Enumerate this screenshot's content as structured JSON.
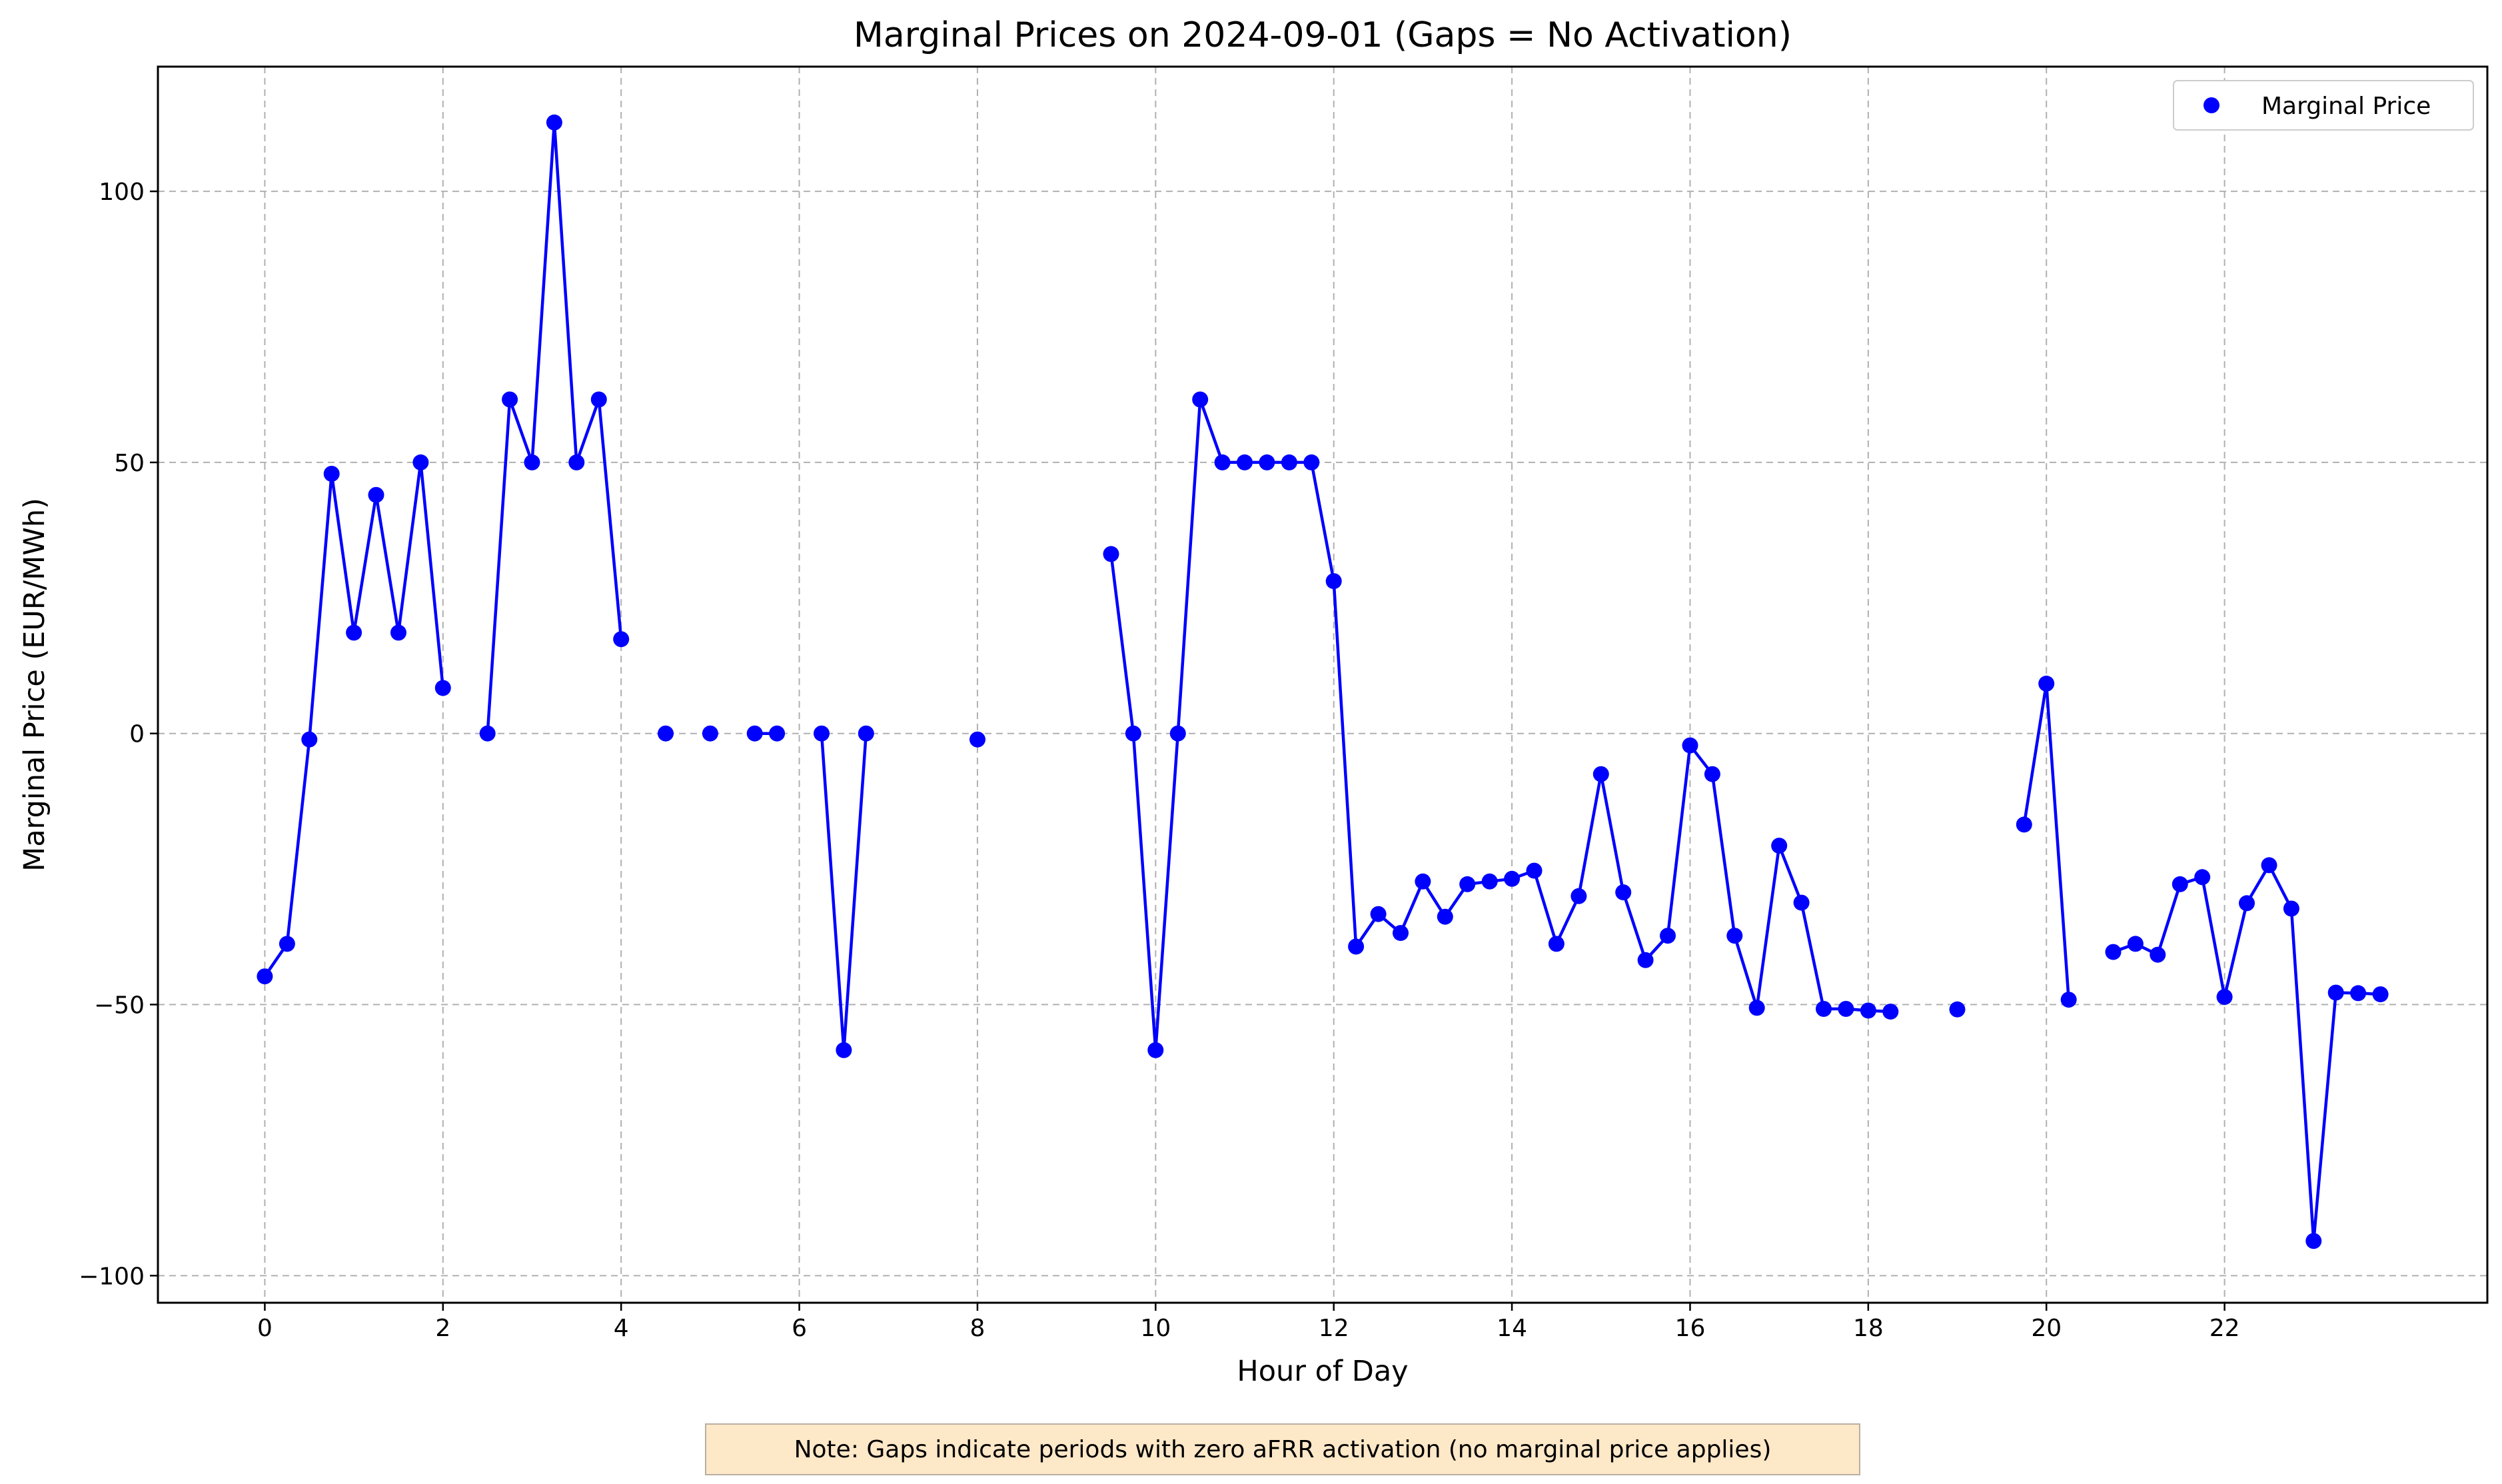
{
  "chart_data": {
    "type": "line",
    "title": "Marginal Prices on 2024-09-01 (Gaps = No Activation)",
    "xlabel": "Hour of Day",
    "ylabel": "Marginal Price (EUR/MWh)",
    "xlim": [
      -1.2,
      24.95
    ],
    "ylim": [
      -105,
      123
    ],
    "xticks": [
      0,
      2,
      4,
      6,
      8,
      10,
      12,
      14,
      16,
      18,
      20,
      22
    ],
    "xtick_labels": [
      "0",
      "2",
      "4",
      "6",
      "8",
      "10",
      "12",
      "14",
      "16",
      "18",
      "20",
      "22"
    ],
    "yticks": [
      -100,
      -50,
      0,
      50,
      100
    ],
    "ytick_labels": [
      "−100",
      "−50",
      "0",
      "50",
      "100"
    ],
    "grid": true,
    "legend_position": "top-right",
    "series": [
      {
        "name": "Marginal Price",
        "color": "#0000ff",
        "marker": "circle",
        "x": [
          0,
          0.25,
          0.5,
          0.75,
          1,
          1.25,
          1.5,
          1.75,
          2,
          2.25,
          2.5,
          2.75,
          3,
          3.25,
          3.5,
          3.75,
          4,
          4.25,
          4.5,
          4.75,
          5,
          5.25,
          5.5,
          5.75,
          6,
          6.25,
          6.5,
          6.75,
          7,
          7.25,
          7.5,
          7.75,
          8,
          8.25,
          8.5,
          8.75,
          9,
          9.25,
          9.5,
          9.75,
          10,
          10.25,
          10.5,
          10.75,
          11,
          11.25,
          11.5,
          11.75,
          12,
          12.25,
          12.5,
          12.75,
          13,
          13.25,
          13.5,
          13.75,
          14,
          14.25,
          14.5,
          14.75,
          15,
          15.25,
          15.5,
          15.75,
          16,
          16.25,
          16.5,
          16.75,
          17,
          17.25,
          17.5,
          17.75,
          18,
          18.25,
          18.5,
          18.75,
          19,
          19.25,
          19.5,
          19.75,
          20,
          20.25,
          20.5,
          20.75,
          21,
          21.25,
          21.5,
          21.75,
          22,
          22.25,
          22.5,
          22.75,
          23,
          23.25,
          23.5,
          23.75
        ],
        "y": [
          -44.8,
          -38.8,
          -1.1,
          47.9,
          18.6,
          44.0,
          18.6,
          50.0,
          8.4,
          null,
          0.0,
          61.6,
          50.0,
          112.7,
          50.0,
          61.6,
          17.4,
          null,
          0.0,
          null,
          0.0,
          null,
          0.0,
          0.0,
          null,
          0.0,
          -58.4,
          0.0,
          null,
          null,
          null,
          null,
          -1.1,
          null,
          null,
          null,
          null,
          null,
          33.1,
          0.0,
          -58.4,
          0.0,
          61.6,
          50.0,
          50.0,
          50.0,
          50.0,
          50.0,
          28.1,
          -39.3,
          -33.3,
          -36.8,
          -27.3,
          -33.8,
          -27.8,
          -27.3,
          -26.8,
          -25.3,
          -38.8,
          -30.0,
          -7.5,
          -29.3,
          -41.8,
          -37.3,
          -2.2,
          -7.5,
          -37.3,
          -50.6,
          -20.7,
          -31.2,
          -50.8,
          -50.8,
          -51.1,
          -51.3,
          null,
          null,
          -50.9,
          null,
          null,
          -16.8,
          9.2,
          -49.1,
          null,
          -40.3,
          -38.8,
          -40.8,
          -27.8,
          -26.5,
          -48.6,
          -31.3,
          -24.3,
          -32.3,
          -93.6,
          -47.8,
          -47.9,
          -48.1
        ]
      }
    ]
  },
  "legend": {
    "entries": [
      "Marginal Price"
    ]
  },
  "note": {
    "text": "Note: Gaps indicate periods with zero aFRR activation (no marginal price applies)"
  }
}
